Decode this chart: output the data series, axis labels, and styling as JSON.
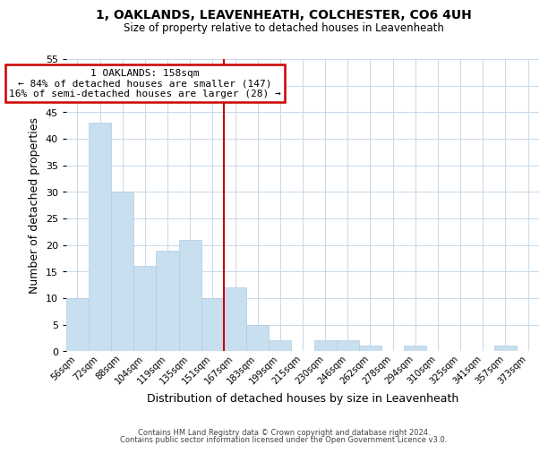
{
  "title": "1, OAKLANDS, LEAVENHEATH, COLCHESTER, CO6 4UH",
  "subtitle": "Size of property relative to detached houses in Leavenheath",
  "xlabel": "Distribution of detached houses by size in Leavenheath",
  "ylabel": "Number of detached properties",
  "bar_color": "#c8dff0",
  "bar_edge_color": "#b0cce0",
  "background_color": "#ffffff",
  "grid_color": "#c8d8e8",
  "bin_labels": [
    "56sqm",
    "72sqm",
    "88sqm",
    "104sqm",
    "119sqm",
    "135sqm",
    "151sqm",
    "167sqm",
    "183sqm",
    "199sqm",
    "215sqm",
    "230sqm",
    "246sqm",
    "262sqm",
    "278sqm",
    "294sqm",
    "310sqm",
    "325sqm",
    "341sqm",
    "357sqm",
    "373sqm"
  ],
  "values": [
    10,
    43,
    30,
    16,
    19,
    21,
    10,
    12,
    5,
    2,
    0,
    2,
    2,
    1,
    0,
    1,
    0,
    0,
    0,
    1,
    0
  ],
  "vline_color": "#cc0000",
  "annotation_title": "1 OAKLANDS: 158sqm",
  "annotation_line1": "← 84% of detached houses are smaller (147)",
  "annotation_line2": "16% of semi-detached houses are larger (28) →",
  "annotation_box_color": "#ffffff",
  "annotation_box_edge": "#cc0000",
  "ylim": [
    0,
    55
  ],
  "yticks": [
    0,
    5,
    10,
    15,
    20,
    25,
    30,
    35,
    40,
    45,
    50,
    55
  ],
  "footer1": "Contains HM Land Registry data © Crown copyright and database right 2024.",
  "footer2": "Contains public sector information licensed under the Open Government Licence v3.0."
}
